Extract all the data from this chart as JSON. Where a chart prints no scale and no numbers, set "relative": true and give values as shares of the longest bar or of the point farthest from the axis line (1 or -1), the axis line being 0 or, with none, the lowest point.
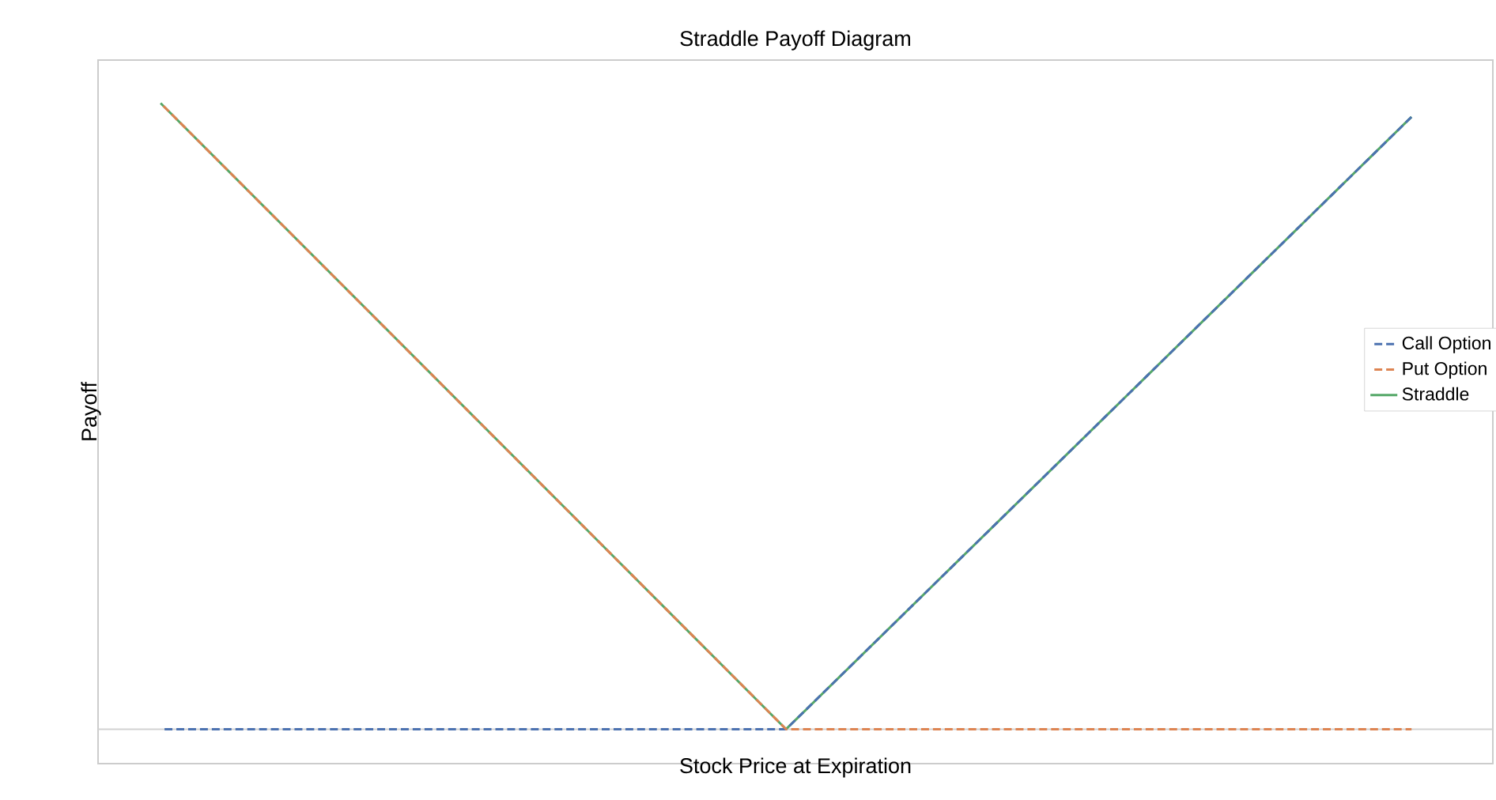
{
  "chart_data": {
    "type": "line",
    "title": "Straddle Payoff Diagram",
    "xlabel": "Stock Price at Expiration",
    "ylabel": "Payoff",
    "categories": [
      null,
      null,
      null
    ],
    "relative": true,
    "legend": "right",
    "series": [
      {
        "name": "Call Option",
        "color": "#4c72b0",
        "line_style": "dashed",
        "values": [
          0,
          0,
          0.978
        ]
      },
      {
        "name": "Put Option",
        "color": "#dd8452",
        "line_style": "dashed",
        "values": [
          1,
          0,
          0
        ]
      },
      {
        "name": "Straddle",
        "color": "#55a868",
        "line_style": "solid",
        "values": [
          1,
          0,
          0.978
        ]
      }
    ]
  }
}
